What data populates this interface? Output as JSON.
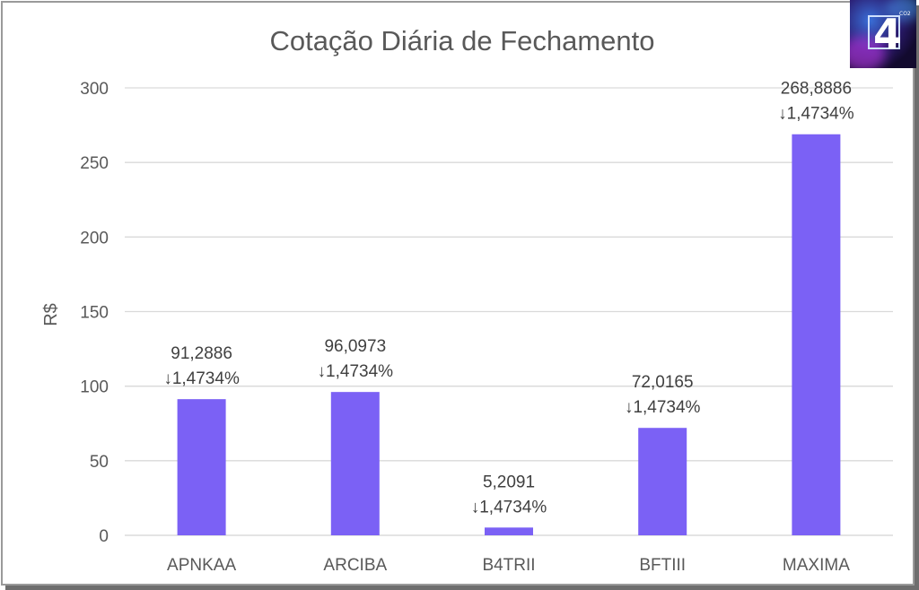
{
  "logo": {
    "glyph": "4",
    "superscript": "CO2"
  },
  "chart_data": {
    "type": "bar",
    "title": "Cotação Diária de Fechamento",
    "xlabel": "",
    "ylabel": "R$",
    "ylim": [
      0,
      300
    ],
    "yticks": [
      0,
      50,
      100,
      150,
      200,
      250,
      300
    ],
    "grid": true,
    "bar_color": "#7b61f5",
    "categories": [
      "APNKAA",
      "ARCIBA",
      "B4TRII",
      "BFTIII",
      "MAXIMA"
    ],
    "values": [
      91.2886,
      96.0973,
      5.2091,
      72.0165,
      268.8886
    ],
    "value_labels": [
      "91,2886",
      "96,0973",
      "5,2091",
      "72,0165",
      "268,8886"
    ],
    "change_labels": [
      "↓1,4734%",
      "↓1,4734%",
      "↓1,4734%",
      "↓1,4734%",
      "↓1,4734%"
    ]
  }
}
